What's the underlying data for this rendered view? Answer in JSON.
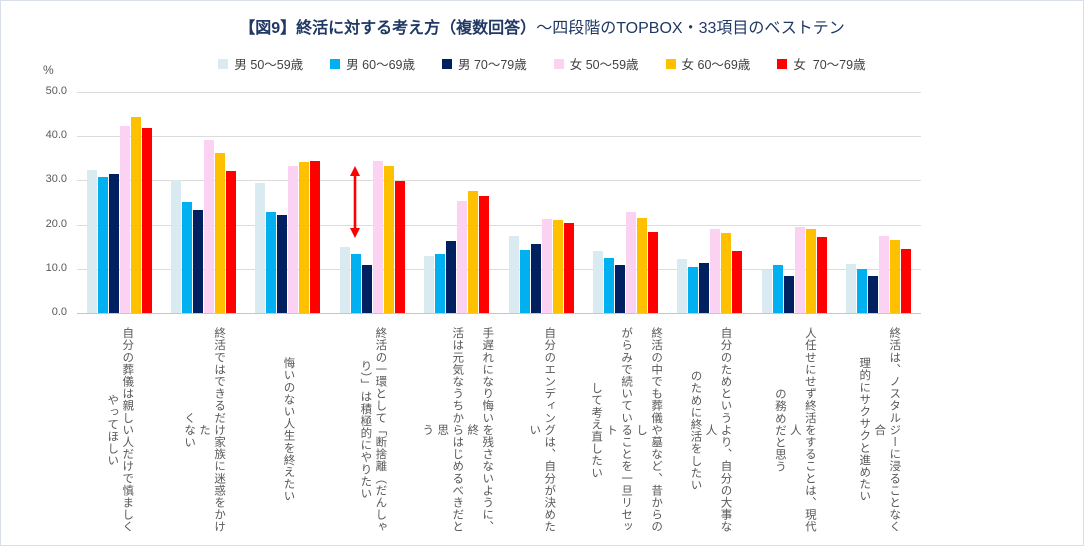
{
  "title": {
    "bold": "【図9】終活に対する考え方（複数回答）",
    "rest": "～四段階のTOPBOX・33項目のベストテン"
  },
  "y_axis": {
    "unit": "%",
    "ticks": [
      "0.0",
      "10.0",
      "20.0",
      "30.0",
      "40.0",
      "50.0"
    ]
  },
  "chart_data": {
    "type": "bar",
    "title": "【図9】終活に対する考え方（複数回答）～四段階のTOPBOX・33項目のベストテン",
    "xlabel": "",
    "ylabel": "%",
    "ylim": [
      0,
      50
    ],
    "grid": true,
    "legend_position": "top",
    "categories": [
      {
        "lines": [
          "自分の葬儀は親しい人だけで慎ましく",
          "やってほしい"
        ]
      },
      {
        "lines": [
          "終活ではできるだけ家族に迷惑をかけた",
          "くない"
        ]
      },
      {
        "lines": [
          "悔いのない人生を終えたい"
        ]
      },
      {
        "lines": [
          "終活の一環として「断捨離（だんしゃ",
          "り）」は積極的にやりたい"
        ]
      },
      {
        "lines": [
          "手遅れになり悔いを残さないように、終",
          "活は元気なうちからはじめるべきだと思",
          "う"
        ]
      },
      {
        "lines": [
          "自分のエンディングは、自分が決めたい"
        ]
      },
      {
        "lines": [
          "終活の中でも葬儀や墓など、昔からのし",
          "がらみで続いていることを一旦リセット",
          "して考え直したい"
        ]
      },
      {
        "lines": [
          "自分のためというより、自分の大事な人",
          "のために終活をしたい"
        ]
      },
      {
        "lines": [
          "人任せにせず終活をすることは、現代人",
          "の務めだと思う"
        ]
      },
      {
        "lines": [
          "終活は、ノスタルジーに浸ることなく合",
          "理的にサクサクと進めたい"
        ]
      }
    ],
    "series": [
      {
        "name": "男 50～59歳",
        "color": "#daeaf1",
        "values": [
          32.3,
          30.0,
          29.4,
          14.9,
          12.8,
          17.4,
          14.1,
          12.2,
          9.7,
          11.1
        ]
      },
      {
        "name": "男 60～69歳",
        "color": "#00b0f0",
        "values": [
          30.7,
          25.1,
          22.8,
          13.4,
          13.4,
          14.2,
          12.5,
          10.5,
          10.8,
          9.9
        ]
      },
      {
        "name": "男 70～79歳",
        "color": "#002060",
        "values": [
          31.5,
          23.4,
          22.1,
          10.8,
          16.3,
          15.6,
          10.9,
          11.4,
          8.4,
          8.3
        ]
      },
      {
        "name": "女 50～59歳",
        "color": "#fcd2f2",
        "values": [
          42.3,
          39.2,
          33.2,
          34.4,
          25.4,
          21.2,
          22.8,
          19.1,
          19.4,
          17.5
        ]
      },
      {
        "name": "女 60～69歳",
        "color": "#ffc000",
        "values": [
          44.3,
          36.2,
          34.2,
          33.3,
          27.5,
          21.0,
          21.5,
          18.2,
          19.0,
          16.6
        ]
      },
      {
        "name": "女  70～79歳",
        "color": "#ff0000",
        "values": [
          41.9,
          32.1,
          34.5,
          29.8,
          26.5,
          20.4,
          18.4,
          14.1,
          17.2,
          14.4
        ]
      }
    ],
    "annotation": {
      "shape": "double-headed-vertical-arrow",
      "category_index": 3,
      "value_top": 33.3,
      "value_bottom": 16.9,
      "color": "#ff0000"
    }
  },
  "colors": {
    "title_text": "#1f3864",
    "axis_text": "#595959",
    "legend_text": "#404040",
    "gridline": "#dcdcdc",
    "axis_line": "#c6c6c6"
  }
}
